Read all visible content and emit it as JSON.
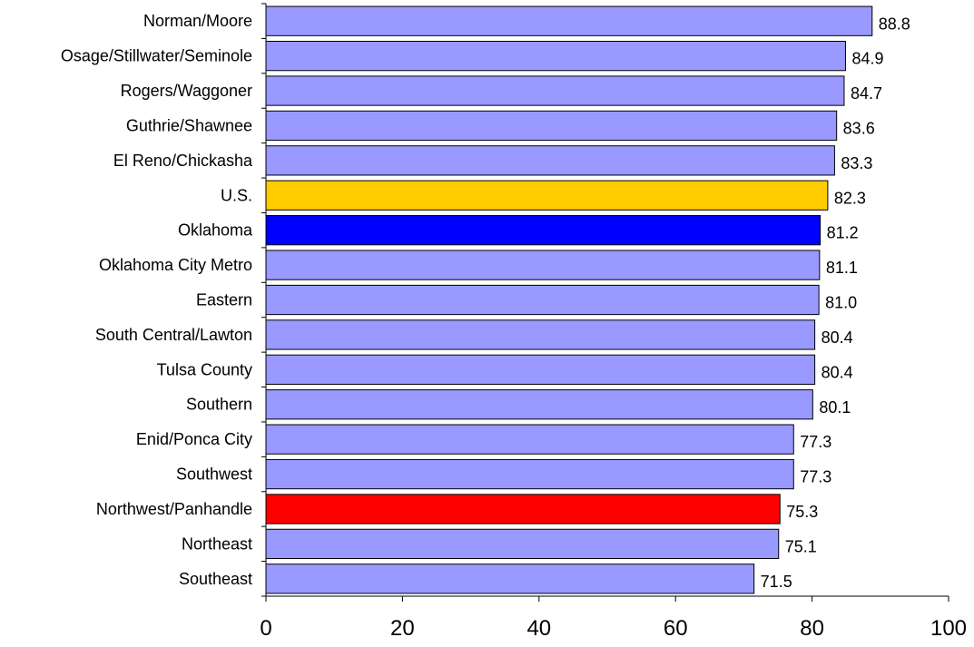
{
  "chart_data": {
    "type": "bar",
    "orientation": "horizontal",
    "categories": [
      "Norman/Moore",
      "Osage/Stillwater/Seminole",
      "Rogers/Waggoner",
      "Guthrie/Shawnee",
      "El Reno/Chickasha",
      "U.S.",
      "Oklahoma",
      "Oklahoma City Metro",
      "Eastern",
      "South Central/Lawton",
      "Tulsa County",
      "Southern",
      "Enid/Ponca City",
      "Southwest",
      "Northwest/Panhandle",
      "Northeast",
      "Southeast"
    ],
    "values": [
      88.8,
      84.9,
      84.7,
      83.6,
      83.3,
      82.3,
      81.2,
      81.1,
      81.0,
      80.4,
      80.4,
      80.1,
      77.3,
      77.3,
      75.3,
      75.1,
      71.5
    ],
    "value_labels": [
      "88.8",
      "84.9",
      "84.7",
      "83.6",
      "83.3",
      "82.3",
      "81.2",
      "81.1",
      "81.0",
      "80.4",
      "80.4",
      "80.1",
      "77.3",
      "77.3",
      "75.3",
      "75.1",
      "71.5"
    ],
    "bar_colors": [
      "#9999ff",
      "#9999ff",
      "#9999ff",
      "#9999ff",
      "#9999ff",
      "#ffcc00",
      "#0000ff",
      "#9999ff",
      "#9999ff",
      "#9999ff",
      "#9999ff",
      "#9999ff",
      "#9999ff",
      "#9999ff",
      "#ff0000",
      "#9999ff",
      "#9999ff"
    ],
    "xlim": [
      0,
      100
    ],
    "xticks": [
      0,
      20,
      40,
      60,
      80,
      100
    ],
    "xtick_labels": [
      "0",
      "20",
      "40",
      "60",
      "80",
      "100"
    ],
    "title": "",
    "xlabel": "",
    "ylabel": "",
    "grid": false,
    "legend": "none"
  }
}
